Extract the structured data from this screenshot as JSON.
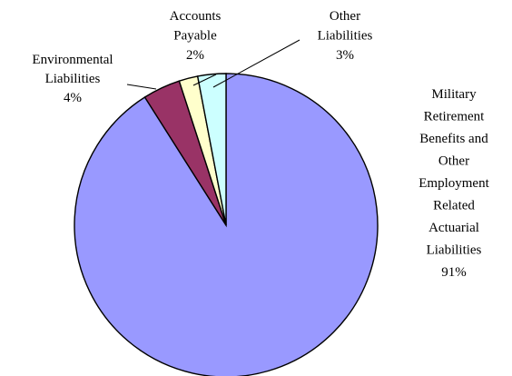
{
  "chart_data": {
    "type": "pie",
    "title": "",
    "start_angle_deg": 0,
    "direction": "clockwise",
    "colors_hex": [
      "#9999FF",
      "#993366",
      "#FFFFCC",
      "#CCFFFF"
    ],
    "slices": [
      {
        "label_lines": [
          "Military",
          "Retirement",
          "Benefits and",
          "Other",
          "Employment",
          "Related",
          "Actuarial",
          "Liabilities"
        ],
        "percent_text": "91%",
        "value": 91
      },
      {
        "label_lines": [
          "Environmental",
          "Liabilities"
        ],
        "percent_text": "4%",
        "value": 4
      },
      {
        "label_lines": [
          "Accounts",
          "Payable"
        ],
        "percent_text": "2%",
        "value": 2
      },
      {
        "label_lines": [
          "Other",
          "Liabilities"
        ],
        "percent_text": "3%",
        "value": 3
      }
    ]
  }
}
